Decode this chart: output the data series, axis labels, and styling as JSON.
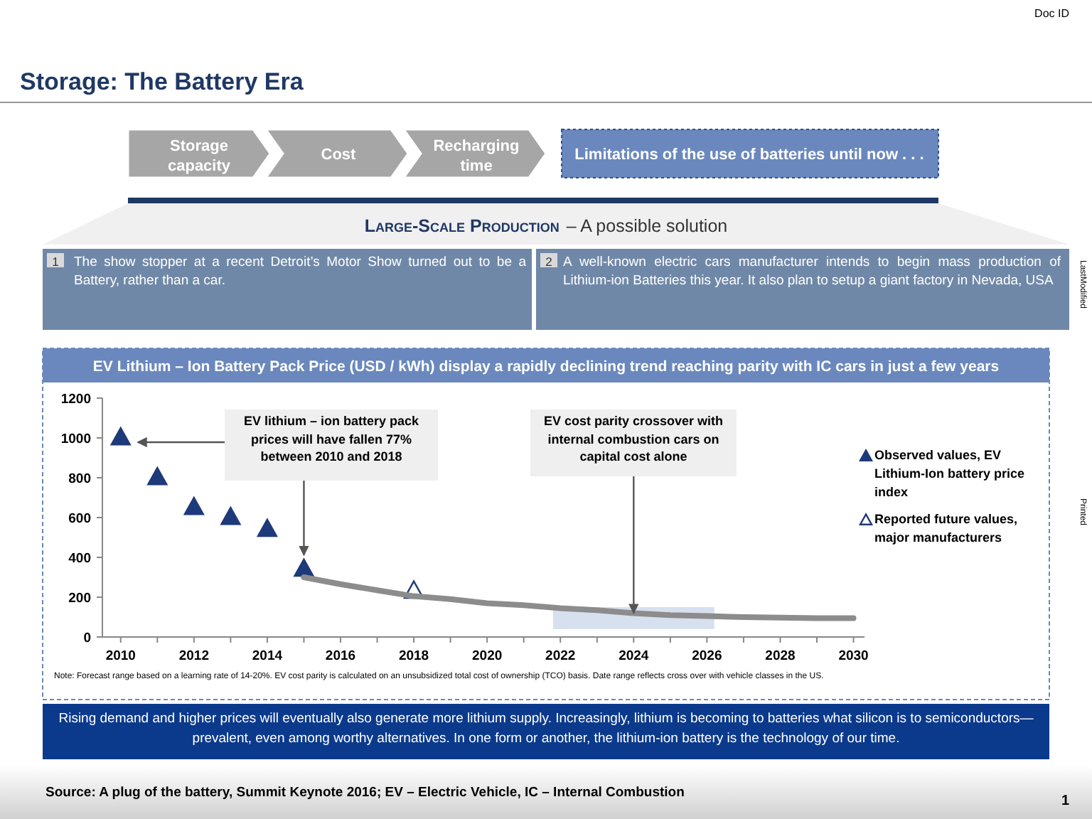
{
  "chart_data": {
    "type": "scatter",
    "title": "EV Lithium – Ion Battery Pack Price (USD / kWh) display a rapidly declining trend reaching parity with IC cars in just a few years",
    "annotations": [
      "Storage: The Battery Era",
      "Storage capacity",
      "Cost",
      "Recharging time",
      "Limitations of the use of batteries until now . . .",
      "Large-Scale Production",
      "– A possible solution",
      "1",
      "The show stopper at a recent Detroit’s Motor Show turned out to be a Battery, rather than a car.",
      "2",
      "A well-known electric cars manufacturer intends to begin mass production of Lithium-ion Batteries this year. It also plan to setup a giant factory in Nevada, USA",
      "EV lithium – ion battery pack prices will have fallen 77% between 2010 and 2018",
      {
        "text": "EV cost parity crossover with internal combustion cars on capital cost alone",
        "x": 2024,
        "y": 120
      },
      "Note: Forecast range based on a learning rate of 14-20%. EV cost parity is calculated on an unsubsidized total cost of ownership (TCO) basis. Date range reflects cross over with vehicle classes in the US.",
      "Rising demand and higher prices will eventually also generate more lithium supply. Increasingly, lithium is becoming to batteries what silicon is to semiconductors— prevalent, even among worthy alternatives. In one form or another, the lithium-ion battery is the technology of our time.",
      "Source: A plug of the battery, Summit Keynote 2016; EV – Electric Vehicle, IC – Internal Combustion",
      "1",
      "Doc ID",
      "LastModified",
      "Printed"
    ],
    "series": [
      {
        "name": "Observed values, EV Lithium-Ion battery price index",
        "color": "#1f3a7a",
        "x": [
          2010,
          2011,
          2012,
          2013,
          2014,
          2015
        ],
        "values": [
          1000,
          800,
          650,
          600,
          540,
          340
        ]
      },
      {
        "name": "Reported future values, major manufacturers",
        "color": "#1f3a7a",
        "x": [
          2018
        ],
        "values": [
          230
        ]
      },
      {
        "type": "line",
        "marker": "none",
        "color": "#8c8c8c",
        "x": [
          2015,
          2016,
          2017,
          2018,
          2019,
          2020,
          2021,
          2022,
          2023,
          2024,
          2025,
          2026,
          2027,
          2028,
          2029,
          2030
        ],
        "values": [
          300,
          265,
          235,
          205,
          190,
          170,
          160,
          145,
          135,
          120,
          110,
          105,
          100,
          97,
          95,
          95
        ]
      }
    ],
    "bands": [
      {
        "axis": "x",
        "from": 2021.8,
        "to": 2026.2,
        "color": "#c5d3e8"
      }
    ],
    "marker": "triangle",
    "legend": "right",
    "grid": false,
    "xlim": [
      2009.5,
      2030.3
    ],
    "xticks": [
      2010,
      {
        "value": 2011,
        "label": null
      },
      2012,
      {
        "value": 2013,
        "label": null
      },
      2014,
      {
        "value": 2015,
        "label": null
      },
      2016,
      {
        "value": 2017,
        "label": null
      },
      2018,
      {
        "value": 2019,
        "label": null
      },
      2020,
      {
        "value": 2021,
        "label": null
      },
      2022,
      {
        "value": 2023,
        "label": null
      },
      2024,
      {
        "value": 2025,
        "label": null
      },
      2026,
      {
        "value": 2027,
        "label": null
      },
      2028,
      {
        "value": 2029,
        "label": null
      },
      2030
    ],
    "ylim": [
      0,
      1200
    ],
    "yticks": [
      0,
      200,
      400,
      600,
      800,
      1000,
      1200
    ]
  }
}
